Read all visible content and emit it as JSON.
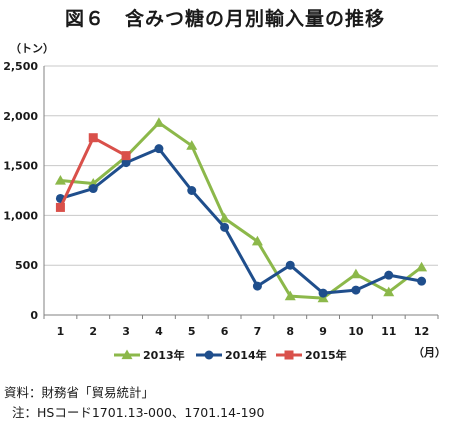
{
  "title": "図６　含みつ糖の月別輸入量の推移",
  "source": "資料：財務省「貿易統計」",
  "note": "注：HSコード1701.13-000、1701.14-190",
  "chart_data": {
    "type": "line",
    "ylabel": "（トン）",
    "xlabel": "（月）",
    "ylim": [
      0,
      2500
    ],
    "yticks": [
      0,
      500,
      1000,
      1500,
      2000,
      2500
    ],
    "ytick_labels": [
      "0",
      "500",
      "1,000",
      "1,500",
      "2,000",
      "2,500"
    ],
    "categories": [
      "1",
      "2",
      "3",
      "4",
      "5",
      "6",
      "7",
      "8",
      "9",
      "10",
      "11",
      "12"
    ],
    "grid": true,
    "legend_position": "bottom",
    "series": [
      {
        "name": "2013年",
        "color": "#8cb84a",
        "marker": "triangle",
        "values": [
          1350,
          1320,
          1590,
          1930,
          1700,
          970,
          740,
          190,
          170,
          410,
          230,
          480
        ]
      },
      {
        "name": "2014年",
        "color": "#1f4e8c",
        "marker": "circle",
        "values": [
          1170,
          1270,
          1530,
          1670,
          1250,
          880,
          290,
          500,
          220,
          250,
          400,
          340
        ]
      },
      {
        "name": "2015年",
        "color": "#d9504a",
        "marker": "square",
        "values": [
          1080,
          1780,
          1600,
          null,
          null,
          null,
          null,
          null,
          null,
          null,
          null,
          null
        ]
      }
    ]
  }
}
